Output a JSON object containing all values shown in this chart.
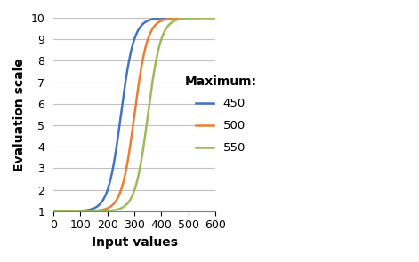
{
  "title": "",
  "xlabel": "Input values",
  "ylabel": "Evaluation scale",
  "xlim": [
    0,
    600
  ],
  "ylim": [
    1,
    10
  ],
  "xticks": [
    0,
    100,
    200,
    300,
    400,
    500,
    600
  ],
  "yticks": [
    1,
    2,
    3,
    4,
    5,
    6,
    7,
    8,
    9,
    10
  ],
  "series": [
    {
      "label": "450",
      "color": "#4472C4",
      "maximum": 450,
      "midpoint": 250
    },
    {
      "label": "500",
      "color": "#ED7D31",
      "maximum": 500,
      "midpoint": 300
    },
    {
      "label": "550",
      "color": "#9BBB59",
      "maximum": 550,
      "midpoint": 350
    }
  ],
  "legend_title": "Maximum:",
  "min_val": 1,
  "max_scale": 10,
  "growth_rate": 0.042,
  "background_color": "#ffffff",
  "grid_color": "#c0c0c0"
}
